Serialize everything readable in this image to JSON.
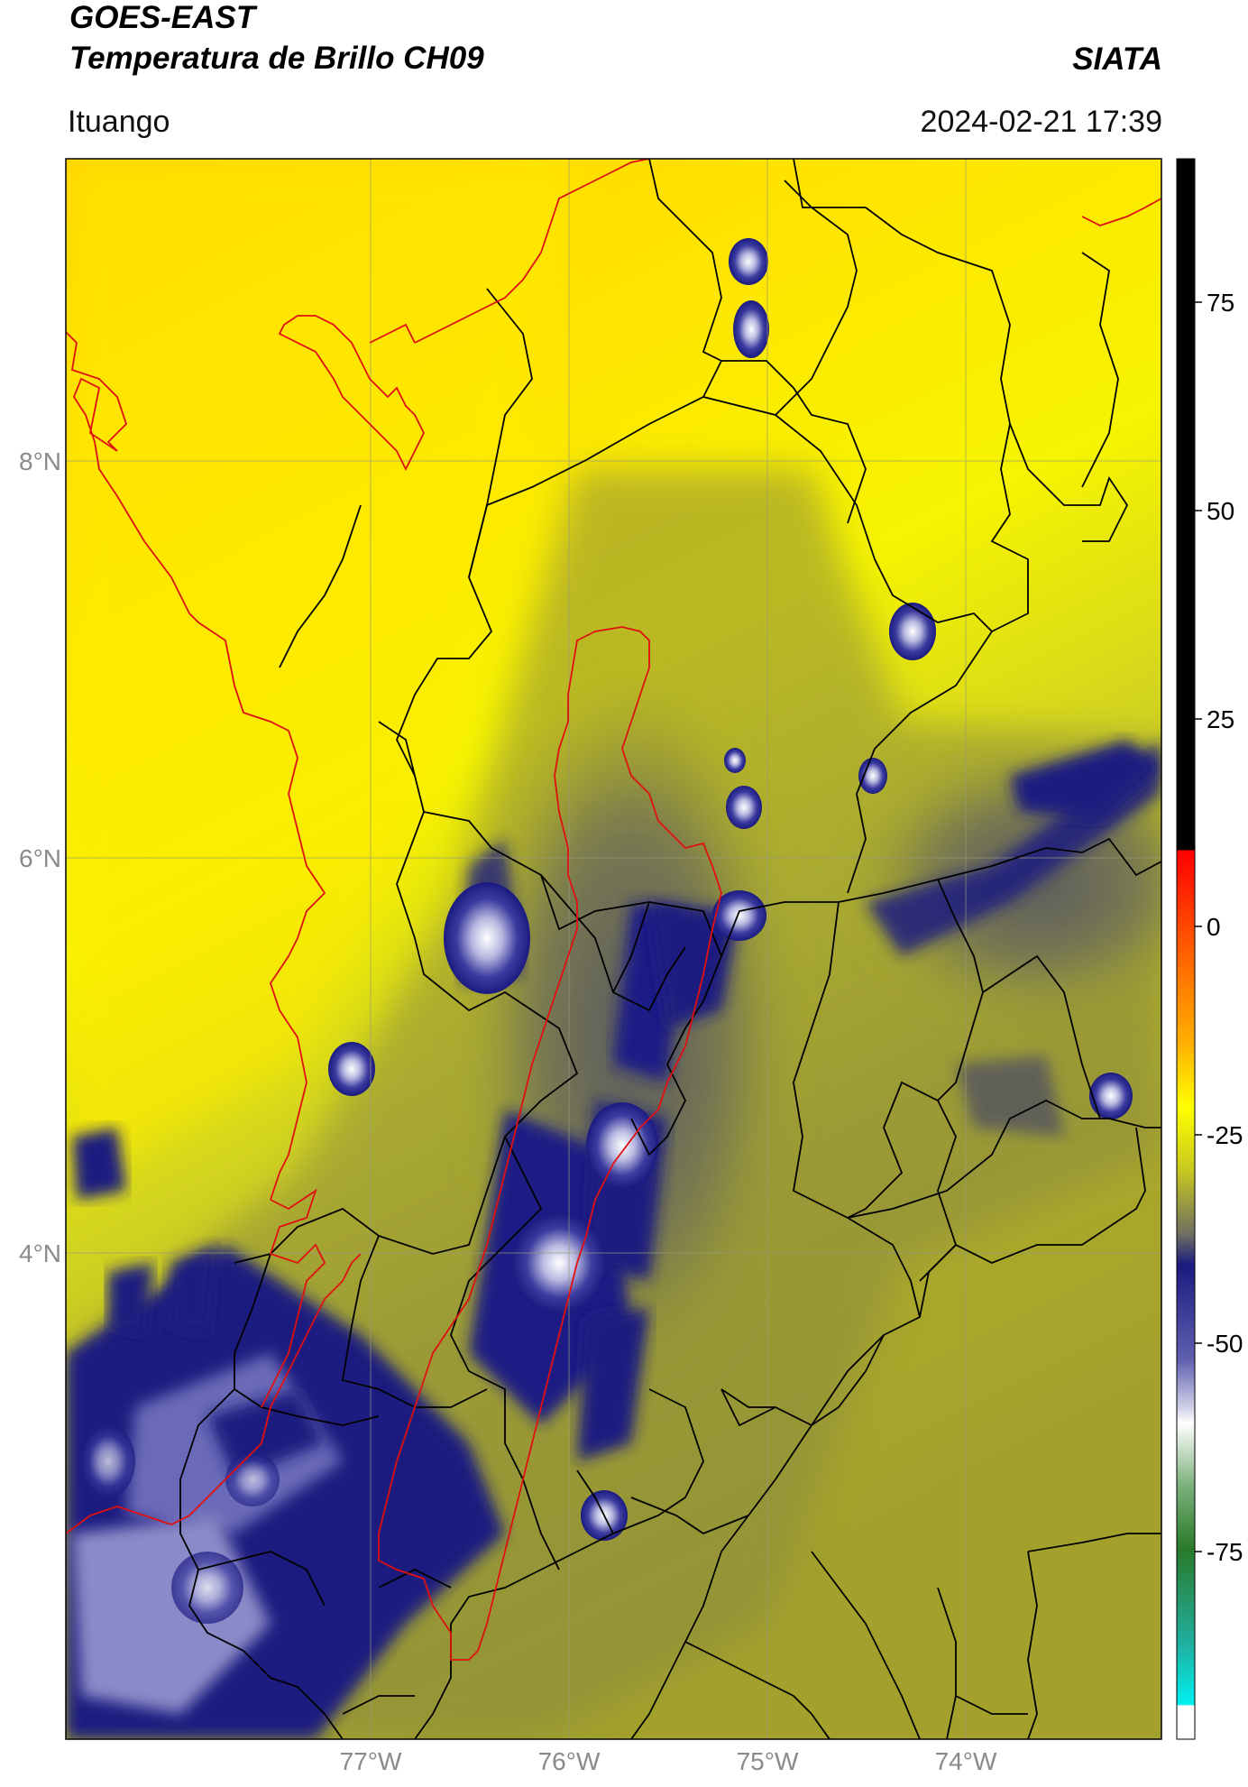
{
  "header": {
    "title_line1": "GOES-EAST",
    "title_line2": "Temperatura de Brillo CH09",
    "organization": "SIATA",
    "region": "Ituango",
    "timestamp": "2024-02-21 17:39"
  },
  "map": {
    "lat_labels": [
      "8°N",
      "6°N",
      "4°N"
    ],
    "lon_labels": [
      "77°W",
      "76°W",
      "75°W",
      "74°W"
    ],
    "colors": {
      "border_country": "#e01010",
      "border_dept": "#000000",
      "grid": "#9a9a7a"
    }
  },
  "colorbar": {
    "ticks": [
      "75",
      "50",
      "25",
      "0",
      "-25",
      "-50",
      "-75"
    ],
    "colors": {
      "black": "#000000",
      "red": "#ff0000",
      "orange": "#ff9900",
      "yellow": "#ffff00",
      "olive": "#a0a030",
      "gray": "#606060",
      "navy": "#1a1a80",
      "white": "#ffffff",
      "green": "#2a7a2a",
      "cyan": "#00e0e0"
    }
  }
}
